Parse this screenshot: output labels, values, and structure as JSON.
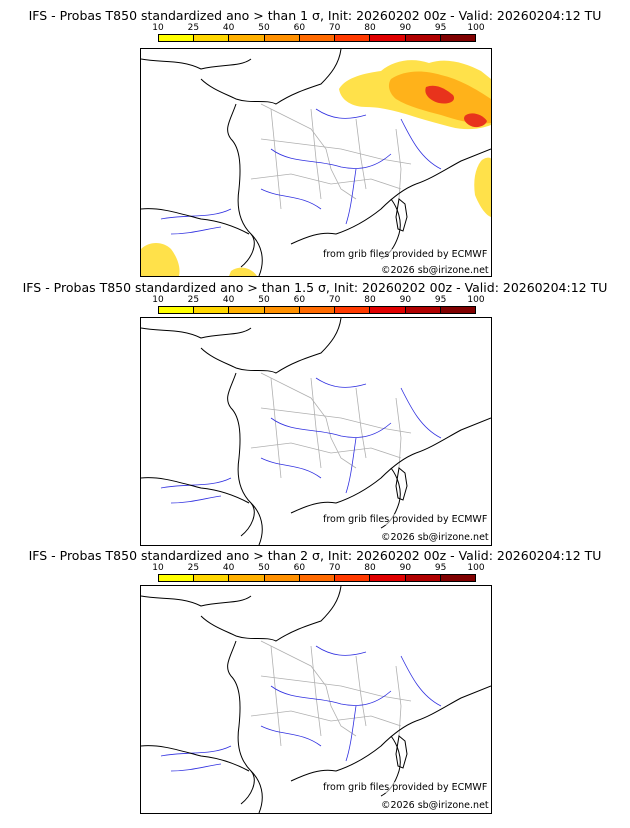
{
  "panels": [
    {
      "title": "IFS - Probas T850  standardized ano > than 1 σ, Init: 20260202 00z - Valid: 20260204:12 TU",
      "source": "from grib files provided by ECMWF",
      "copyright": "©2026 sb@irizone.net"
    },
    {
      "title": "IFS - Probas T850  standardized ano > than 1.5 σ, Init: 20260202 00z - Valid: 20260204:12 TU",
      "source": "from grib files provided by ECMWF",
      "copyright": "©2026 sb@irizone.net"
    },
    {
      "title": "IFS - Probas T850  standardized ano > than 2 σ, Init: 20260202 00z - Valid: 20260204:12 TU",
      "source": "from grib files provided by ECMWF",
      "copyright": "©2026 sb@irizone.net"
    }
  ],
  "colorbar": {
    "ticks": [
      "10",
      "25",
      "40",
      "50",
      "60",
      "70",
      "80",
      "90",
      "95",
      "100"
    ],
    "colors": [
      "#ffff00",
      "#ffd700",
      "#ffb000",
      "#ff9000",
      "#ff6a00",
      "#ff3a00",
      "#e00000",
      "#b00000",
      "#800000"
    ]
  },
  "colors": {
    "coast": "#000000",
    "rivers": "#3030e0",
    "borders": "#b0b0b0",
    "prob_low": "#ffe000",
    "prob_mid": "#ffb000",
    "prob_high": "#e03000"
  }
}
